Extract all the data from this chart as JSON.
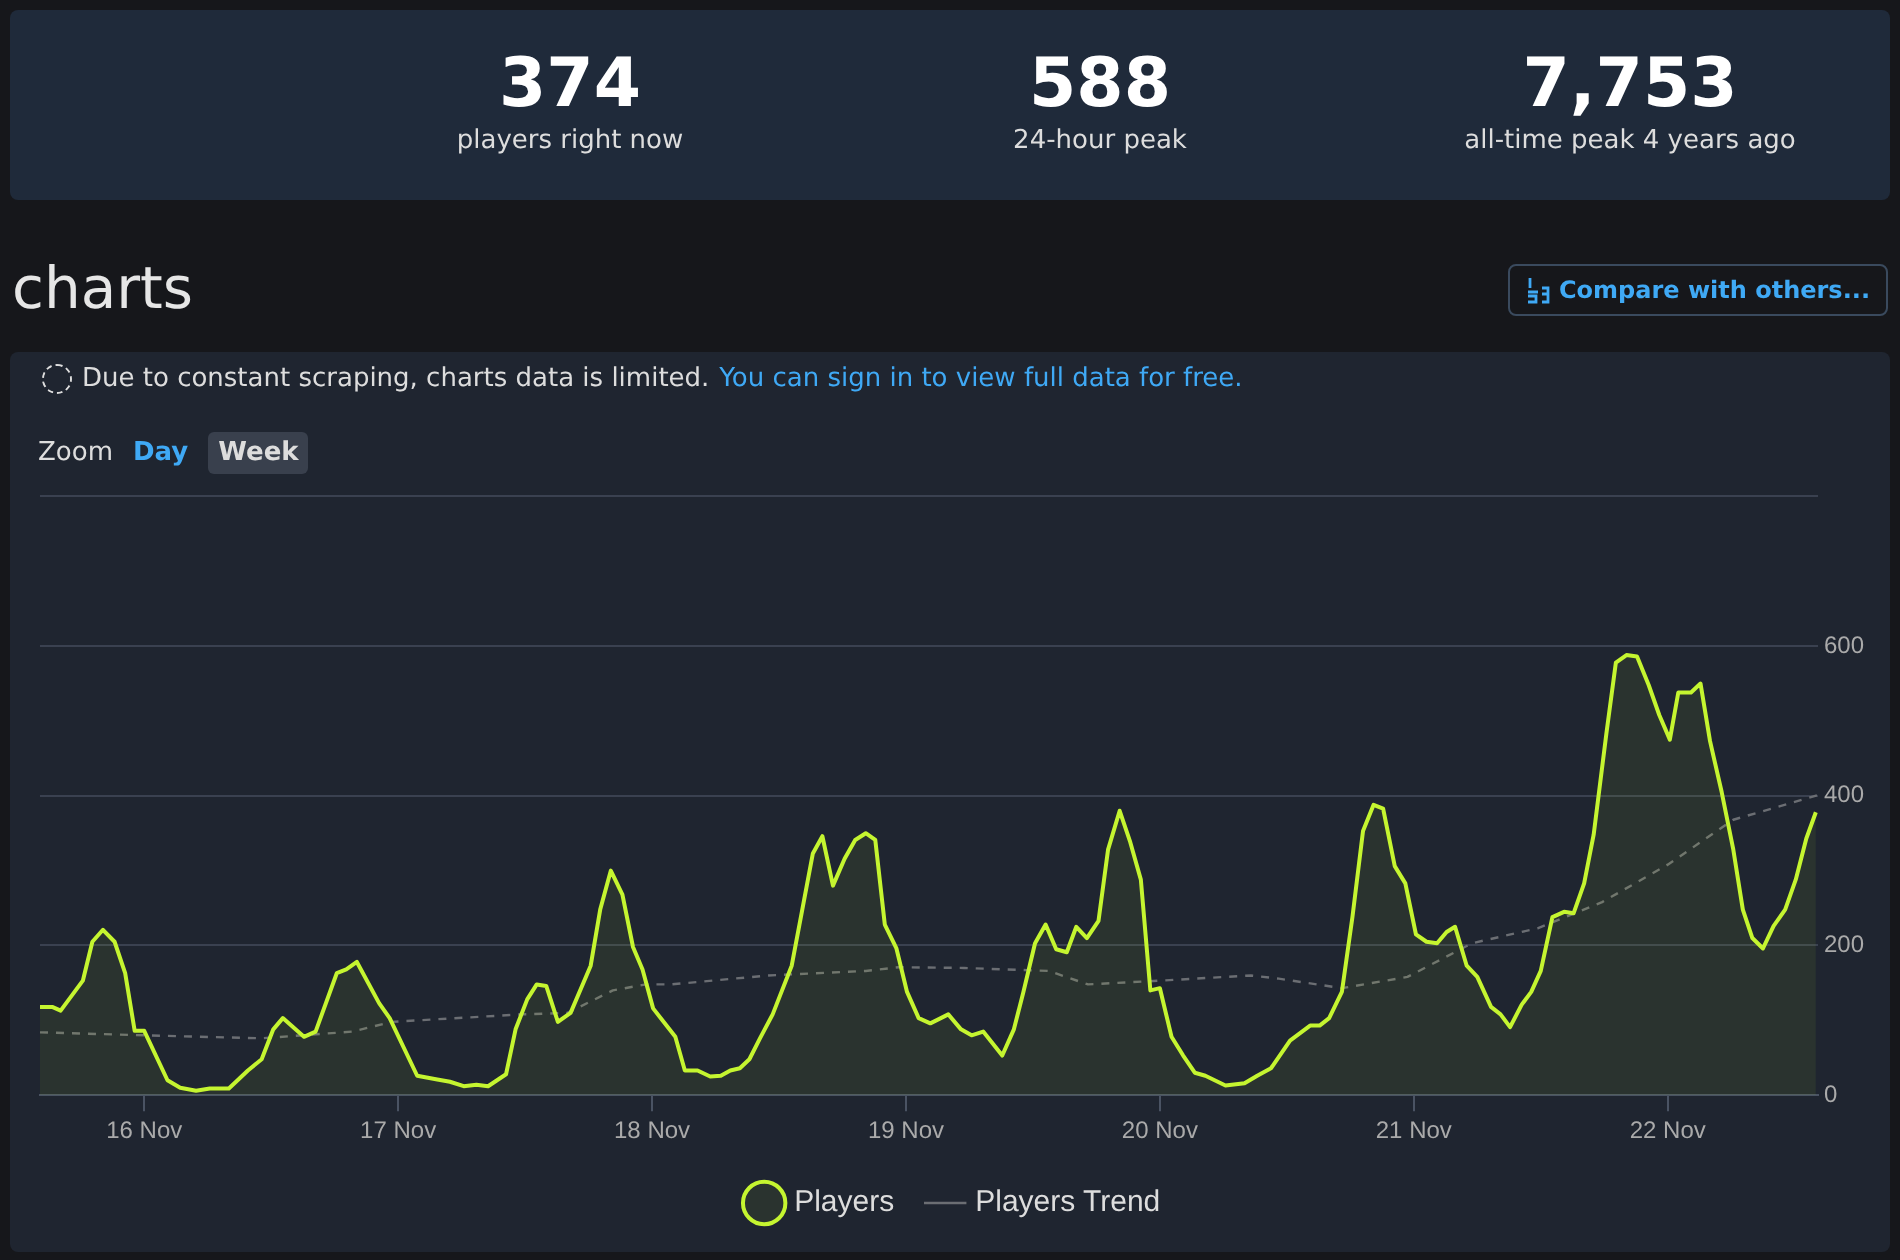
{
  "chart_data": {
    "type": "area",
    "title": "charts",
    "annotations": [
      "374",
      "players right now",
      "588",
      "24-hour peak",
      "7,753",
      "all-time peak 4 years ago",
      "Due to constant scraping, charts data is limited.",
      "You can sign in to view full data for free.",
      "Zoom",
      "Day",
      "Week",
      "Compare with others..."
    ],
    "xlim": [
      "--11-15T14:09",
      "--11-22T14:12"
    ],
    "xticks": [
      {
        "value": "--11-16",
        "label": "16 Nov"
      },
      {
        "value": "--11-17",
        "label": "17 Nov"
      },
      {
        "value": "--11-18",
        "label": "18 Nov"
      },
      {
        "value": "--11-19",
        "label": "19 Nov"
      },
      {
        "value": "--11-20",
        "label": "20 Nov"
      },
      {
        "value": "--11-21",
        "label": "21 Nov"
      },
      {
        "value": "--11-22",
        "label": "22 Nov"
      }
    ],
    "ylim": [
      0,
      800
    ],
    "yticks": [
      0,
      200,
      400,
      600,
      {
        "value": 800,
        "label": null
      }
    ],
    "grid": "y",
    "legend": "bottom",
    "marker": "none",
    "series": [
      {
        "name": "Players",
        "type": "area",
        "color": "#c5f530",
        "x": [
          "--11-15T14:09",
          "--11-15T15:18",
          "--11-15T16:06",
          "--11-15T18:12",
          "--11-15T19:06",
          "--11-15T20:06",
          "--11-15T21:12",
          "--11-15T22:12",
          "--11-15T23:06",
          "--11-16T00:00",
          "--11-16T02:12",
          "--11-16T03:24",
          "--11-16T04:54",
          "--11-16T06:12",
          "--11-16T08:00",
          "--11-16T09:48",
          "--11-16T11:06",
          "--11-16T12:12",
          "--11-16T13:06",
          "--11-16T15:06",
          "--11-16T16:12",
          "--11-16T18:12",
          "--11-16T19:06",
          "--11-16T20:06",
          "--11-16T22:12",
          "--11-16T23:12",
          "--11-17T01:48",
          "--11-17T03:42",
          "--11-17T04:54",
          "--11-17T06:12",
          "--11-17T07:24",
          "--11-17T08:30",
          "--11-17T10:12",
          "--11-17T11:06",
          "--11-17T12:12",
          "--11-17T13:06",
          "--11-17T14:00",
          "--11-17T15:06",
          "--11-17T16:18",
          "--11-17T18:12",
          "--11-17T19:06",
          "--11-17T20:06",
          "--11-17T21:12",
          "--11-17T22:12",
          "--11-17T23:06",
          "--11-18T00:06",
          "--11-18T02:12",
          "--11-18T03:06",
          "--11-18T04:18",
          "--11-18T05:30",
          "--11-18T06:30",
          "--11-18T07:24",
          "--11-18T08:18",
          "--11-18T09:12",
          "--11-18T10:12",
          "--11-18T11:24",
          "--11-18T13:12",
          "--11-18T14:12",
          "--11-18T15:12",
          "--11-18T16:06",
          "--11-18T17:06",
          "--11-18T18:12",
          "--11-18T19:12",
          "--11-18T20:12",
          "--11-18T21:06",
          "--11-18T22:00",
          "--11-18T23:06",
          "--11-19T00:06",
          "--11-19T01:12",
          "--11-19T02:18",
          "--11-19T04:00",
          "--11-19T05:12",
          "--11-19T06:12",
          "--11-19T07:18",
          "--11-19T09:06",
          "--11-19T10:12",
          "--11-19T11:06",
          "--11-19T12:12",
          "--11-19T13:12",
          "--11-19T14:12",
          "--11-19T15:12",
          "--11-19T16:06",
          "--11-19T17:06",
          "--11-19T18:12",
          "--11-19T19:06",
          "--11-19T20:12",
          "--11-19T21:12",
          "--11-19T22:12",
          "--11-19T23:06",
          "--11-20T00:00",
          "--11-20T01:06",
          "--11-20T02:12",
          "--11-20T03:18",
          "--11-20T04:18",
          "--11-20T06:12",
          "--11-20T08:00",
          "--11-20T09:12",
          "--11-20T10:30",
          "--11-20T12:18",
          "--11-20T14:12",
          "--11-20T15:06",
          "--11-20T16:00",
          "--11-20T17:12",
          "--11-20T18:12",
          "--11-20T19:12",
          "--11-20T20:12",
          "--11-20T21:06",
          "--11-20T22:12",
          "--11-20T23:12",
          "--11-21T00:12",
          "--11-21T01:12",
          "--11-21T02:12",
          "--11-21T03:06",
          "--11-21T03:54",
          "--11-21T05:00",
          "--11-21T06:00",
          "--11-21T07:18",
          "--11-21T08:12",
          "--11-21T09:06",
          "--11-21T10:12",
          "--11-21T11:06",
          "--11-21T12:00",
          "--11-21T13:06",
          "--11-21T14:12",
          "--11-21T15:06",
          "--11-21T16:06",
          "--11-21T17:00",
          "--11-21T18:12",
          "--11-21T19:06",
          "--11-21T20:06",
          "--11-21T21:06",
          "--11-21T22:12",
          "--11-21T23:12",
          "--11-22T00:12",
          "--11-22T01:00",
          "--11-22T02:12",
          "--11-22T03:06",
          "--11-22T04:00",
          "--11-22T05:06",
          "--11-22T06:12",
          "--11-22T07:06",
          "--11-22T08:00",
          "--11-22T09:00",
          "--11-22T10:00",
          "--11-22T11:06",
          "--11-22T12:06",
          "--11-22T13:06",
          "--11-22T14:00"
        ],
        "values": [
          118,
          118,
          113,
          153,
          205,
          221,
          205,
          163,
          86,
          86,
          20,
          10,
          6,
          9,
          9,
          33,
          48,
          88,
          103,
          78,
          85,
          163,
          168,
          178,
          123,
          103,
          26,
          21,
          18,
          12,
          14,
          12,
          28,
          88,
          128,
          148,
          146,
          98,
          110,
          173,
          248,
          300,
          268,
          198,
          168,
          116,
          78,
          33,
          33,
          25,
          26,
          33,
          36,
          48,
          76,
          108,
          173,
          248,
          323,
          346,
          280,
          316,
          341,
          350,
          341,
          228,
          196,
          138,
          103,
          96,
          108,
          88,
          80,
          85,
          53,
          88,
          138,
          203,
          228,
          195,
          191,
          225,
          210,
          233,
          328,
          380,
          338,
          288,
          140,
          143,
          78,
          53,
          30,
          26,
          13,
          16,
          26,
          36,
          73,
          93,
          93,
          103,
          138,
          238,
          353,
          388,
          383,
          306,
          283,
          215,
          205,
          203,
          218,
          225,
          173,
          158,
          118,
          108,
          91,
          121,
          138,
          166,
          238,
          245,
          243,
          283,
          348,
          483,
          578,
          588,
          586,
          548,
          508,
          475,
          538,
          538,
          550,
          473,
          405,
          328,
          248,
          210,
          196,
          226,
          248,
          288,
          343,
          378
        ]
      },
      {
        "name": "Players Trend",
        "type": "line",
        "line_style": "dashed",
        "color": "#6b6e73",
        "x": [
          "--11-15T14:09",
          "--11-16T00:00",
          "--11-16T11:06",
          "--11-16T19:42",
          "--11-16T23:24",
          "--11-17T11:42",
          "--11-17T16:00",
          "--11-17T20:18",
          "--11-17T23:24",
          "--11-18T01:48",
          "--11-18T11:00",
          "--11-18T20:12",
          "--11-18T23:18",
          "--11-19T05:30",
          "--11-19T13:30",
          "--11-19T17:12",
          "--11-20T00:00",
          "--11-20T08:36",
          "--11-20T11:06",
          "--11-20T17:12",
          "--11-20T23:24",
          "--11-21T05:30",
          "--11-21T11:42",
          "--11-21T17:48",
          "--11-22T00:00",
          "--11-22T06:12",
          "--11-22T14:12"
        ],
        "values": [
          84,
          80,
          76,
          85,
          98,
          108,
          110,
          140,
          148,
          148,
          160,
          166,
          171,
          170,
          166,
          148,
          153,
          160,
          156,
          143,
          158,
          203,
          223,
          258,
          308,
          368,
          401
        ]
      }
    ]
  }
}
